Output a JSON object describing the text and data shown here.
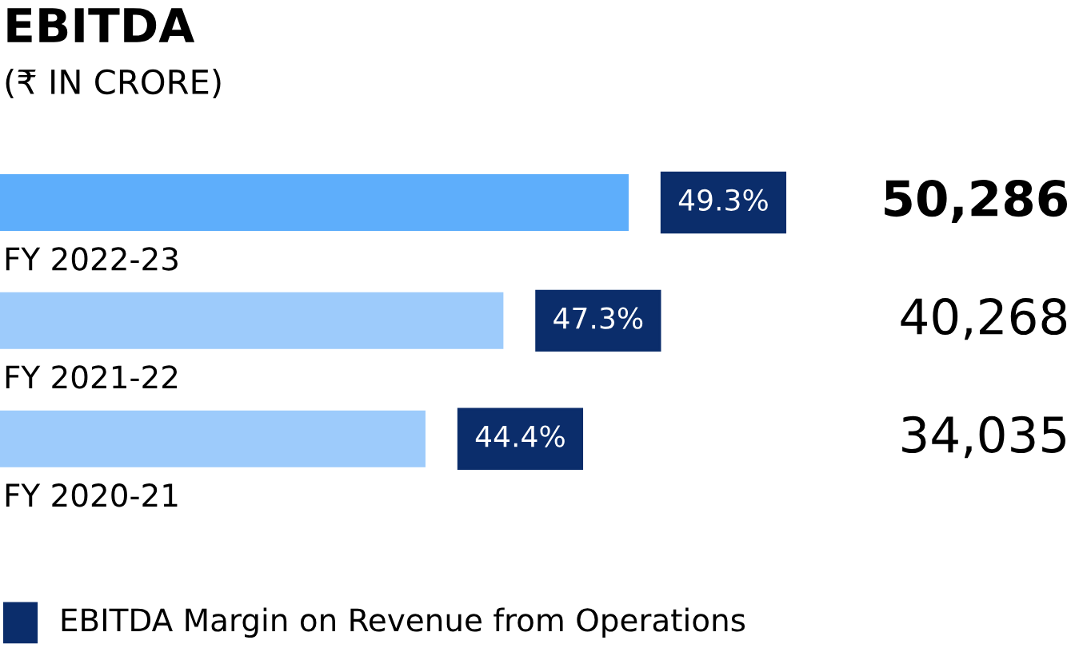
{
  "chart_data": {
    "type": "bar",
    "orientation": "horizontal",
    "title": "EBITDA",
    "subtitle": "(₹ IN CRORE)",
    "categories": [
      "FY 2022-23",
      "FY 2021-22",
      "FY 2020-21"
    ],
    "values": [
      50286,
      40268,
      34035
    ],
    "value_labels": [
      "50,286",
      "40,268",
      "34,035"
    ],
    "colors": [
      "#5eaefb",
      "#9dcbfb",
      "#9dcbfb"
    ],
    "annotations": [
      "49.3%",
      "47.3%",
      "44.4%",
      "EBITDA Margin on Revenue from Operations"
    ],
    "legend": false
  }
}
